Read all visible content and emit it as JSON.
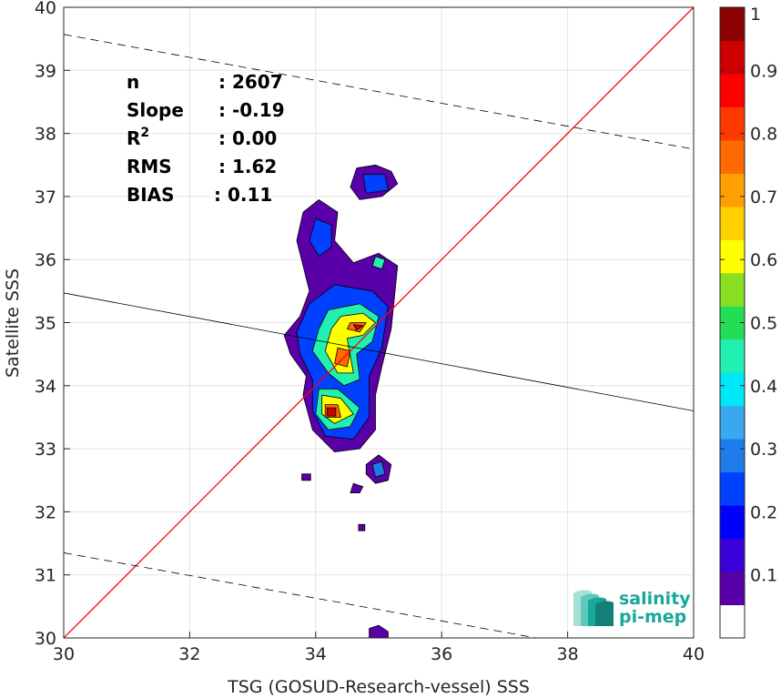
{
  "chart_data": {
    "type": "scatter",
    "xlabel": "TSG (GOSUD-Research-vessel) SSS",
    "ylabel": "Satellite SSS",
    "xlim": [
      30,
      40
    ],
    "ylim": [
      30,
      40
    ],
    "xticks": [
      30,
      32,
      34,
      36,
      38,
      40
    ],
    "yticks": [
      30,
      31,
      32,
      33,
      34,
      35,
      36,
      37,
      38,
      39,
      40
    ],
    "grid": true,
    "stats": [
      {
        "label": "n",
        "value": ": 2607"
      },
      {
        "label": "Slope",
        "value": ": -0.19"
      },
      {
        "label": "R2",
        "value": ": 0.00"
      },
      {
        "label": "RMS",
        "value": ": 1.62"
      },
      {
        "label": "BIAS",
        "value": ": 0.11"
      }
    ],
    "lines": {
      "identity": {
        "color": "#ff0000",
        "points": [
          [
            30,
            30
          ],
          [
            40,
            40
          ]
        ]
      },
      "regression": {
        "color": "#000000",
        "points": [
          [
            30,
            35.47
          ],
          [
            40,
            33.6
          ]
        ]
      },
      "upper_bound": {
        "color": "#000000",
        "dashed": true,
        "points": [
          [
            30,
            39.57
          ],
          [
            40,
            37.75
          ]
        ]
      },
      "lower_bound": {
        "color": "#000000",
        "dashed": true,
        "points": [
          [
            30,
            31.35
          ],
          [
            37.5,
            30.0
          ]
        ]
      }
    },
    "colorbar": {
      "min": 0,
      "max": 1,
      "ticks": [
        0.1,
        0.2,
        0.3,
        0.4,
        0.5,
        0.6,
        0.7,
        0.8,
        0.9,
        1
      ],
      "tick_labels": [
        "0.1",
        "0.2",
        "0.3",
        "0.4",
        "0.5",
        "0.6",
        "0.7",
        "0.8",
        "0.9",
        "1"
      ],
      "levels": [
        "#ffffff",
        "#5a00a8",
        "#3a00d8",
        "#0000ff",
        "#0040ff",
        "#1e7bea",
        "#3aa8ee",
        "#00e8f8",
        "#22f0b0",
        "#22dd55",
        "#88e020",
        "#ffff00",
        "#ffd000",
        "#ffa000",
        "#ff6a00",
        "#ff3a00",
        "#ff0000",
        "#cc0000",
        "#8b0000"
      ]
    },
    "density_blobs": [
      {
        "level": 1,
        "points": [
          [
            34.65,
            37.45
          ],
          [
            34.95,
            37.5
          ],
          [
            35.2,
            37.4
          ],
          [
            35.3,
            37.2
          ],
          [
            35.05,
            37.0
          ],
          [
            34.7,
            36.95
          ],
          [
            34.55,
            37.15
          ]
        ]
      },
      {
        "level": 1,
        "points": [
          [
            34.05,
            36.95
          ],
          [
            34.35,
            36.75
          ],
          [
            34.3,
            36.3
          ],
          [
            34.6,
            35.95
          ],
          [
            35.0,
            36.1
          ],
          [
            35.3,
            35.9
          ],
          [
            35.25,
            35.4
          ],
          [
            35.2,
            34.9
          ],
          [
            35.05,
            34.3
          ],
          [
            34.95,
            33.85
          ],
          [
            34.95,
            33.3
          ],
          [
            34.7,
            33.0
          ],
          [
            34.3,
            32.95
          ],
          [
            33.95,
            33.3
          ],
          [
            33.8,
            33.85
          ],
          [
            33.85,
            34.15
          ],
          [
            33.6,
            34.5
          ],
          [
            33.5,
            34.8
          ],
          [
            33.75,
            35.1
          ],
          [
            33.9,
            35.5
          ],
          [
            33.8,
            35.9
          ],
          [
            33.7,
            36.3
          ],
          [
            33.8,
            36.75
          ]
        ]
      },
      {
        "level": 1,
        "points": [
          [
            34.8,
            32.75
          ],
          [
            35.0,
            32.9
          ],
          [
            35.2,
            32.75
          ],
          [
            35.15,
            32.5
          ],
          [
            34.95,
            32.45
          ],
          [
            34.8,
            32.6
          ]
        ]
      },
      {
        "level": 1,
        "points": [
          [
            34.6,
            32.45
          ],
          [
            34.75,
            32.4
          ],
          [
            34.7,
            32.3
          ],
          [
            34.55,
            32.3
          ]
        ]
      },
      {
        "level": 1,
        "points": [
          [
            34.68,
            31.8
          ],
          [
            34.78,
            31.8
          ],
          [
            34.78,
            31.7
          ],
          [
            34.68,
            31.7
          ]
        ]
      },
      {
        "level": 1,
        "points": [
          [
            33.78,
            32.6
          ],
          [
            33.92,
            32.6
          ],
          [
            33.92,
            32.5
          ],
          [
            33.78,
            32.5
          ]
        ]
      },
      {
        "level": 1,
        "points": [
          [
            34.85,
            30.15
          ],
          [
            35.0,
            30.2
          ],
          [
            35.15,
            30.1
          ],
          [
            35.15,
            30.0
          ],
          [
            34.85,
            30.0
          ]
        ]
      },
      {
        "level": 4,
        "points": [
          [
            34.75,
            37.35
          ],
          [
            35.1,
            37.35
          ],
          [
            35.15,
            37.1
          ],
          [
            34.8,
            37.05
          ]
        ]
      },
      {
        "level": 4,
        "points": [
          [
            34.0,
            36.65
          ],
          [
            34.25,
            36.55
          ],
          [
            34.25,
            36.2
          ],
          [
            34.05,
            36.05
          ],
          [
            33.9,
            36.3
          ]
        ]
      },
      {
        "level": 4,
        "points": [
          [
            33.9,
            35.3
          ],
          [
            34.3,
            35.6
          ],
          [
            34.9,
            35.5
          ],
          [
            35.15,
            35.25
          ],
          [
            35.05,
            34.6
          ],
          [
            34.85,
            34.15
          ],
          [
            34.85,
            33.5
          ],
          [
            34.6,
            33.15
          ],
          [
            34.15,
            33.2
          ],
          [
            33.95,
            33.6
          ],
          [
            33.95,
            34.1
          ],
          [
            33.75,
            34.5
          ],
          [
            33.7,
            34.85
          ]
        ]
      },
      {
        "level": 5,
        "points": [
          [
            34.9,
            32.75
          ],
          [
            35.05,
            32.8
          ],
          [
            35.1,
            32.6
          ],
          [
            34.95,
            32.55
          ]
        ]
      },
      {
        "level": 8,
        "points": [
          [
            34.2,
            35.2
          ],
          [
            34.7,
            35.3
          ],
          [
            35.0,
            35.1
          ],
          [
            34.9,
            34.7
          ],
          [
            34.65,
            34.5
          ],
          [
            34.7,
            34.1
          ],
          [
            34.45,
            34.0
          ],
          [
            34.2,
            34.2
          ],
          [
            33.95,
            34.55
          ],
          [
            34.05,
            34.9
          ]
        ]
      },
      {
        "level": 8,
        "points": [
          [
            34.05,
            33.95
          ],
          [
            34.35,
            33.95
          ],
          [
            34.7,
            33.65
          ],
          [
            34.55,
            33.35
          ],
          [
            34.2,
            33.3
          ],
          [
            34.0,
            33.55
          ]
        ]
      },
      {
        "level": 8,
        "points": [
          [
            34.95,
            36.05
          ],
          [
            35.1,
            36.0
          ],
          [
            35.05,
            35.85
          ],
          [
            34.9,
            35.9
          ]
        ]
      },
      {
        "level": 11,
        "points": [
          [
            34.4,
            35.1
          ],
          [
            34.75,
            35.15
          ],
          [
            34.95,
            35.0
          ],
          [
            34.75,
            34.8
          ],
          [
            34.5,
            34.75
          ],
          [
            34.6,
            34.2
          ],
          [
            34.35,
            34.2
          ],
          [
            34.15,
            34.55
          ],
          [
            34.25,
            34.9
          ]
        ]
      },
      {
        "level": 11,
        "points": [
          [
            34.1,
            33.85
          ],
          [
            34.4,
            33.8
          ],
          [
            34.6,
            33.55
          ],
          [
            34.3,
            33.4
          ],
          [
            34.1,
            33.55
          ]
        ]
      },
      {
        "level": 14,
        "points": [
          [
            34.55,
            35.0
          ],
          [
            34.8,
            35.0
          ],
          [
            34.7,
            34.85
          ],
          [
            34.5,
            34.9
          ]
        ]
      },
      {
        "level": 14,
        "points": [
          [
            34.35,
            34.6
          ],
          [
            34.55,
            34.55
          ],
          [
            34.5,
            34.3
          ],
          [
            34.3,
            34.35
          ]
        ]
      },
      {
        "level": 14,
        "points": [
          [
            34.15,
            33.7
          ],
          [
            34.35,
            33.7
          ],
          [
            34.4,
            33.5
          ],
          [
            34.15,
            33.5
          ]
        ]
      },
      {
        "level": 17,
        "points": [
          [
            34.6,
            34.97
          ],
          [
            34.75,
            34.95
          ],
          [
            34.65,
            34.88
          ]
        ]
      },
      {
        "level": 17,
        "points": [
          [
            34.18,
            33.65
          ],
          [
            34.32,
            33.65
          ],
          [
            34.32,
            33.52
          ],
          [
            34.18,
            33.52
          ]
        ]
      }
    ],
    "logo": {
      "line1": "salinity",
      "line2": "pi-mep",
      "color": "#1aa89a"
    }
  }
}
